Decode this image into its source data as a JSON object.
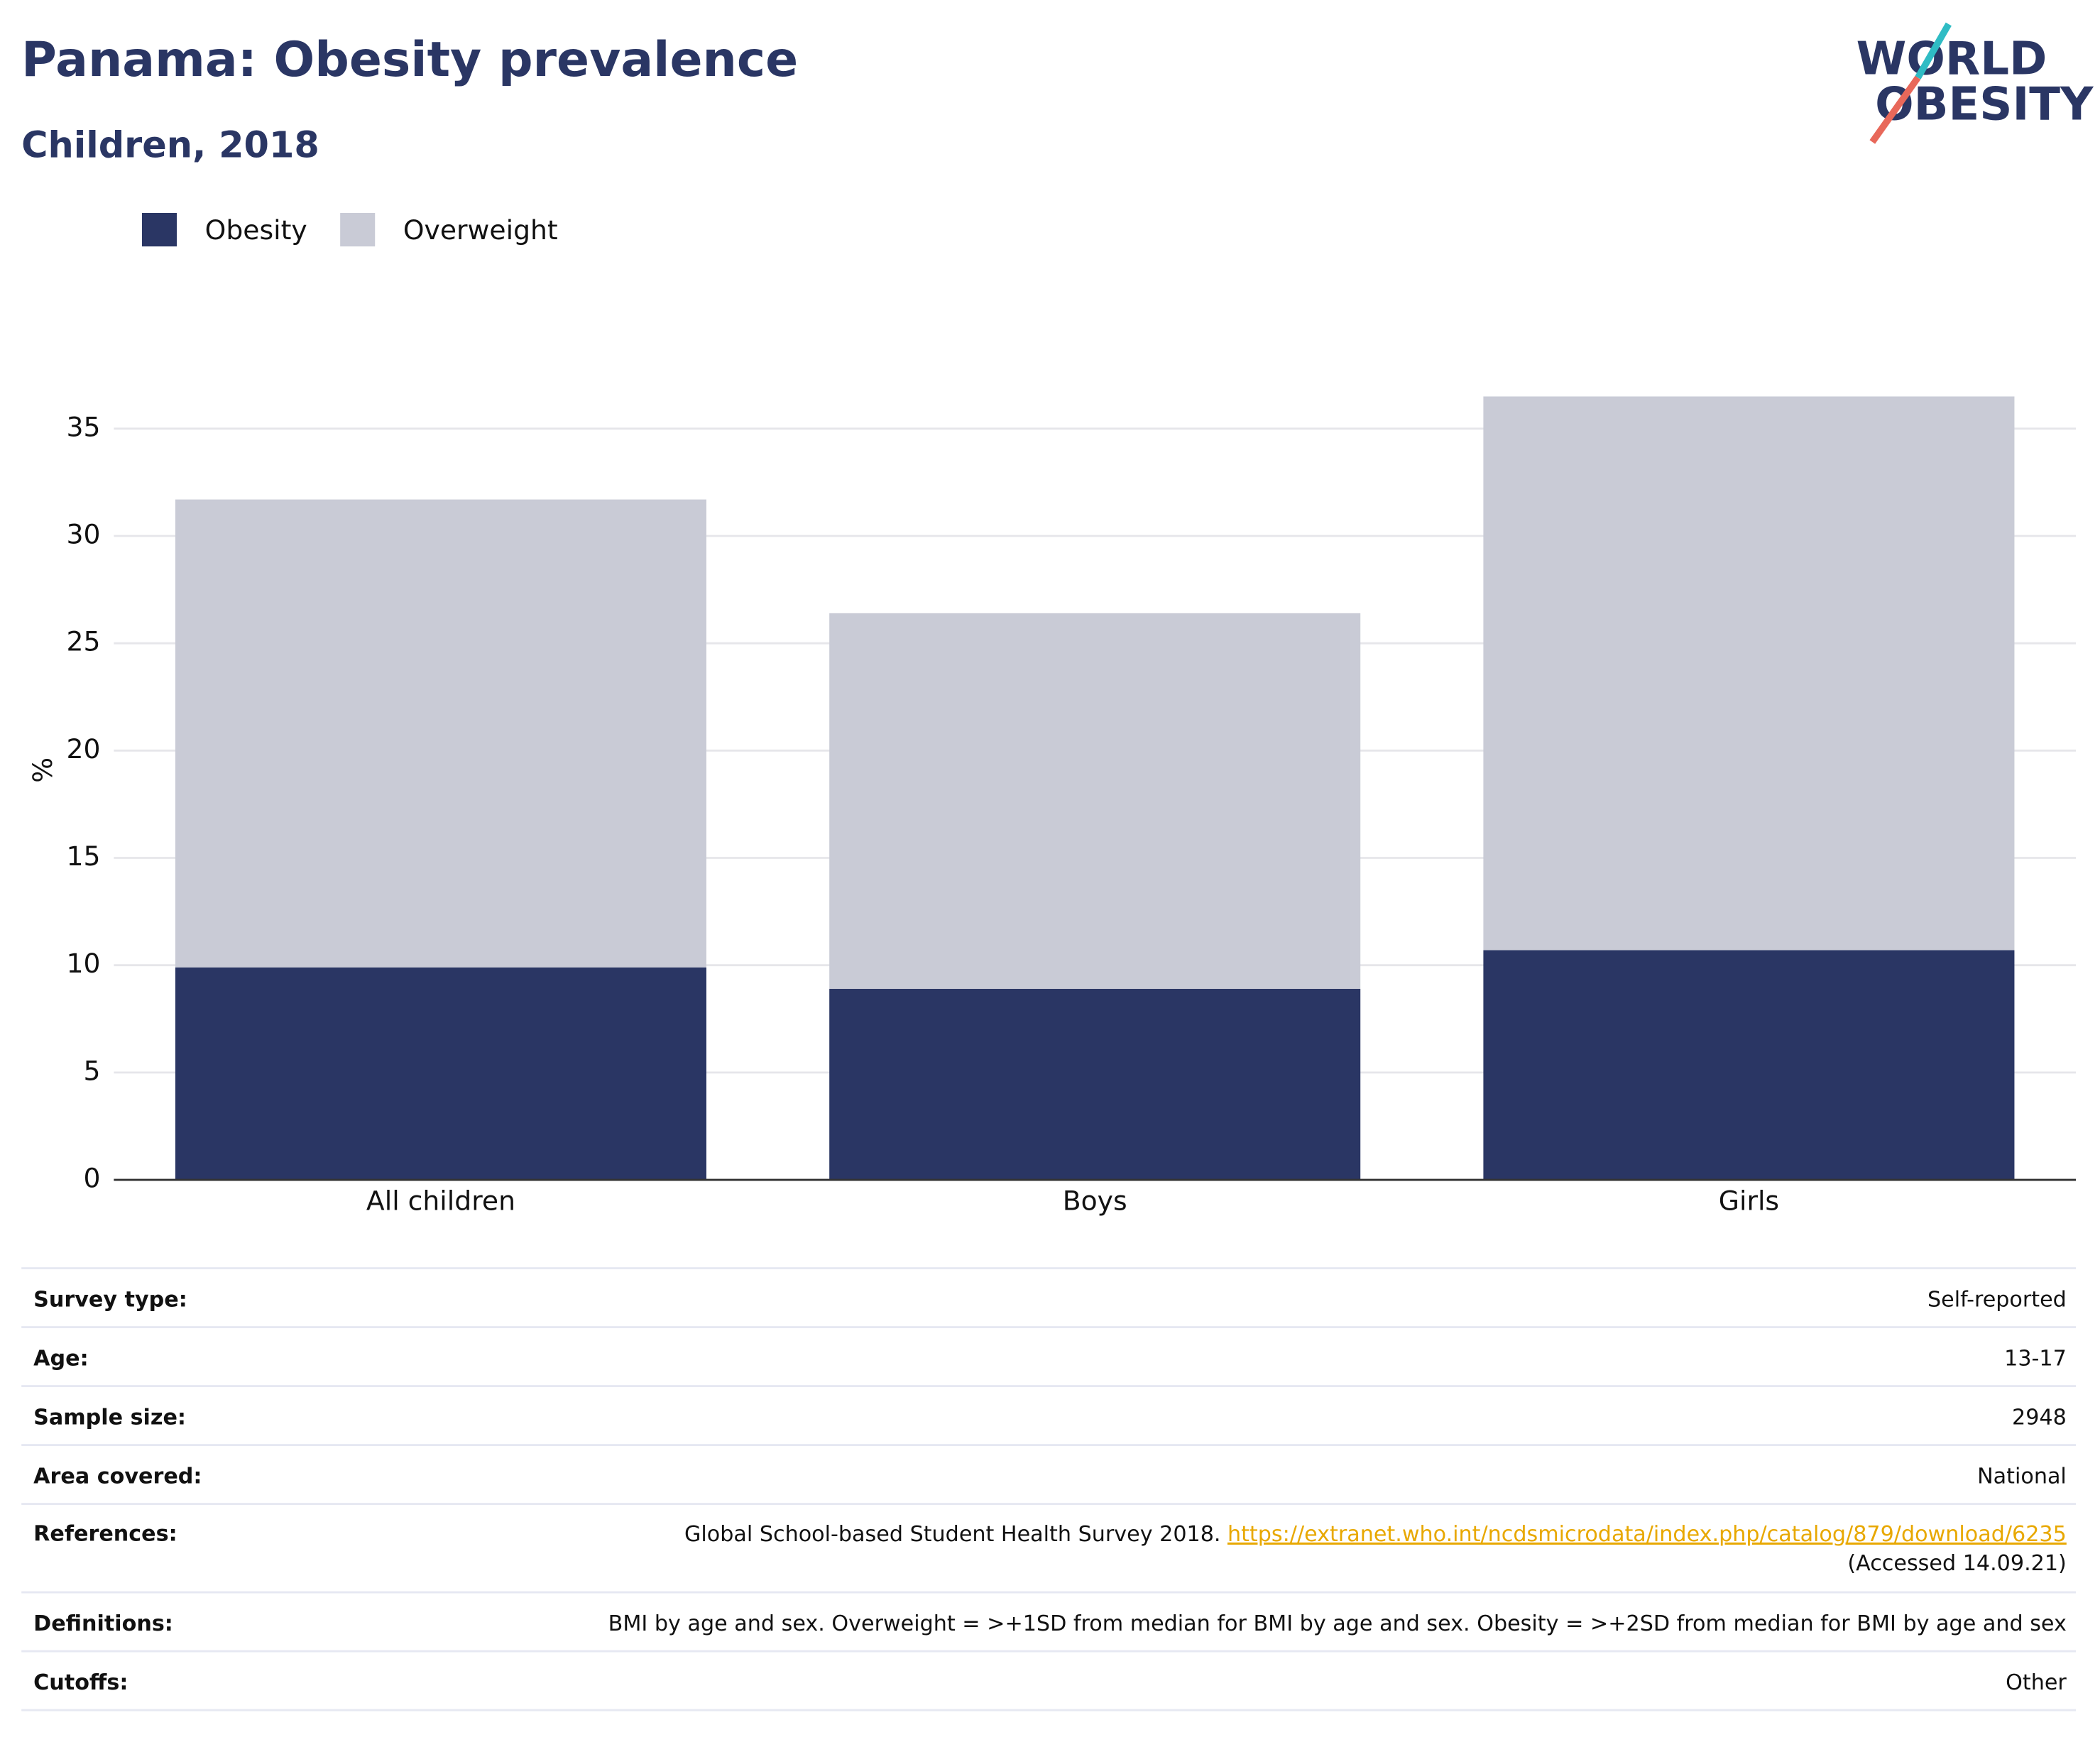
{
  "chart_data": {
    "type": "stacked_bar",
    "title": "Panama: Obesity prevalence",
    "subtitle": "Children, 2018",
    "y_label": "%",
    "categories": [
      "All children",
      "Boys",
      "Girls"
    ],
    "series": [
      {
        "name": "Obesity",
        "color": "#2a3664",
        "values": [
          9.9,
          8.9,
          10.7
        ]
      },
      {
        "name": "Overweight",
        "color": "#c9cbd6",
        "values": [
          21.8,
          17.5,
          25.8
        ]
      }
    ],
    "ylim": [
      0,
      37
    ],
    "yticks": [
      0,
      5,
      10,
      15,
      20,
      25,
      30,
      35
    ],
    "grid": true
  },
  "logo": {
    "line1": "WORLD",
    "line2": "OBESITY"
  },
  "table": {
    "rows": [
      [
        "Survey type:",
        "Self-reported"
      ],
      [
        "Age:",
        "13-17"
      ],
      [
        "Sample size:",
        "2948"
      ],
      [
        "Area covered:",
        "National"
      ],
      [
        "References:",
        "Global School-based Student Health Survey 2018."
      ],
      [
        "Definitions:",
        "BMI by age and sex. Overweight = >+1SD from median for BMI by age and sex. Obesity = >+2SD from median for BMI by age and sex"
      ],
      [
        "Cutoffs:",
        "Other"
      ]
    ],
    "reference_link": "https://extranet.who.int/ncdsmicrodata/index.php/catalog/879/download/6235",
    "reference_accessed": "(Accessed 14.09.21)"
  }
}
